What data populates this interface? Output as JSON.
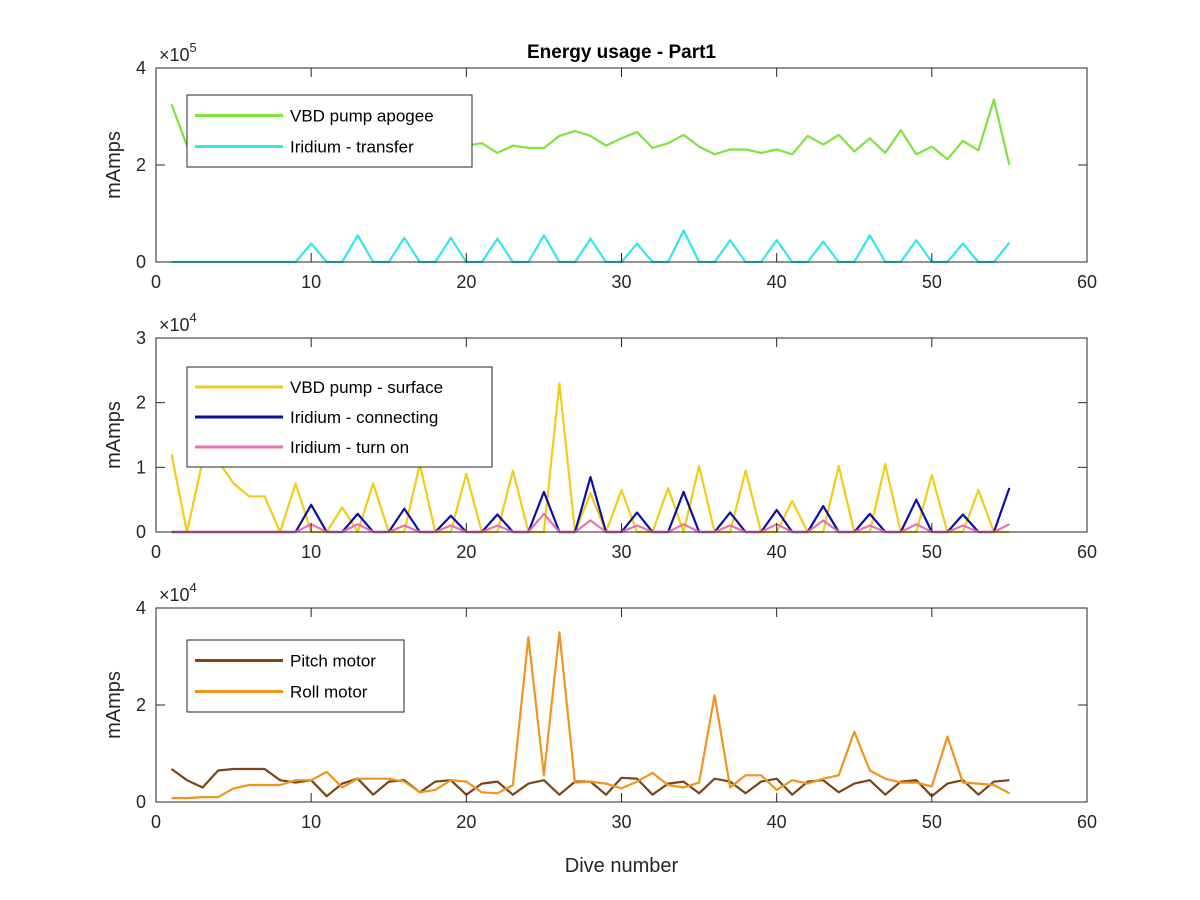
{
  "chart_data": [
    {
      "type": "line",
      "title": "Energy usage - Part1",
      "xlabel": "",
      "ylabel": "mAmps",
      "xlim": [
        0,
        60
      ],
      "ylim": [
        0,
        4
      ],
      "y_multiplier": "10",
      "y_exponent": "5",
      "x_ticks": [
        "0",
        "10",
        "20",
        "30",
        "40",
        "50",
        "60"
      ],
      "y_ticks": [
        "0",
        "2",
        "4"
      ],
      "legend_position": "top-left",
      "series": [
        {
          "name": "VBD pump apogee",
          "color": "#7ee33c",
          "x": [
            1,
            2,
            3,
            4,
            5,
            6,
            7,
            8,
            9,
            10,
            11,
            12,
            13,
            14,
            15,
            16,
            17,
            18,
            19,
            20,
            21,
            22,
            23,
            24,
            25,
            26,
            27,
            28,
            29,
            30,
            31,
            32,
            33,
            34,
            35,
            36,
            37,
            38,
            39,
            40,
            41,
            42,
            43,
            44,
            45,
            46,
            47,
            48,
            49,
            50,
            51,
            52,
            53,
            54,
            55
          ],
          "values": [
            3.25,
            2.4,
            2.5,
            2.45,
            2.5,
            2.4,
            2.45,
            2.5,
            2.42,
            2.48,
            2.4,
            2.45,
            2.5,
            2.35,
            2.48,
            2.4,
            2.5,
            2.42,
            2.45,
            2.4,
            2.45,
            2.25,
            2.4,
            2.35,
            2.35,
            2.6,
            2.7,
            2.6,
            2.4,
            2.55,
            2.68,
            2.35,
            2.45,
            2.62,
            2.38,
            2.22,
            2.32,
            2.32,
            2.25,
            2.32,
            2.22,
            2.6,
            2.42,
            2.62,
            2.28,
            2.55,
            2.25,
            2.72,
            2.22,
            2.38,
            2.12,
            2.5,
            2.3,
            3.35,
            2.0
          ]
        },
        {
          "name": "Iridium - transfer",
          "color": "#33e6ee",
          "x": [
            1,
            2,
            3,
            4,
            5,
            6,
            7,
            8,
            9,
            10,
            11,
            12,
            13,
            14,
            15,
            16,
            17,
            18,
            19,
            20,
            21,
            22,
            23,
            24,
            25,
            26,
            27,
            28,
            29,
            30,
            31,
            32,
            33,
            34,
            35,
            36,
            37,
            38,
            39,
            40,
            41,
            42,
            43,
            44,
            45,
            46,
            47,
            48,
            49,
            50,
            51,
            52,
            53,
            54,
            55
          ],
          "values": [
            0,
            0,
            0,
            0,
            0,
            0,
            0,
            0,
            0,
            0.38,
            0,
            0,
            0.55,
            0,
            0,
            0.5,
            0,
            0,
            0.5,
            0,
            0,
            0.48,
            0,
            0,
            0.55,
            0,
            0,
            0.48,
            0,
            0,
            0.38,
            0,
            0,
            0.65,
            0,
            0,
            0.45,
            0,
            0,
            0.45,
            0,
            0,
            0.42,
            0,
            0,
            0.55,
            0,
            0,
            0.45,
            0,
            0,
            0.38,
            0,
            0,
            0.4
          ]
        }
      ]
    },
    {
      "type": "line",
      "title": "",
      "xlabel": "",
      "ylabel": "mAmps",
      "xlim": [
        0,
        60
      ],
      "ylim": [
        0,
        3
      ],
      "y_multiplier": "10",
      "y_exponent": "4",
      "x_ticks": [
        "0",
        "10",
        "20",
        "30",
        "40",
        "50",
        "60"
      ],
      "y_ticks": [
        "0",
        "1",
        "2",
        "3"
      ],
      "legend_position": "top-left",
      "series": [
        {
          "name": "VBD pump - surface",
          "color": "#f2cd18",
          "x": [
            1,
            2,
            3,
            4,
            5,
            6,
            7,
            8,
            9,
            10,
            11,
            12,
            13,
            14,
            15,
            16,
            17,
            18,
            19,
            20,
            21,
            22,
            23,
            24,
            25,
            26,
            27,
            28,
            29,
            30,
            31,
            32,
            33,
            34,
            35,
            36,
            37,
            38,
            39,
            40,
            41,
            42,
            43,
            44,
            45,
            46,
            47,
            48,
            49,
            50,
            51,
            52,
            53,
            54,
            55
          ],
          "values": [
            1.2,
            0,
            1.1,
            1.1,
            0.75,
            0.55,
            0.55,
            0,
            0.75,
            0,
            0,
            0.38,
            0,
            0.75,
            0,
            0,
            1.05,
            0,
            0,
            0.9,
            0,
            0,
            0.95,
            0,
            0,
            2.3,
            0,
            0.6,
            0,
            0.65,
            0,
            0,
            0.68,
            0,
            1.02,
            0,
            0,
            0.95,
            0,
            0,
            0.48,
            0,
            0,
            1.02,
            0,
            0,
            1.05,
            0,
            0,
            0.88,
            0,
            0,
            0.65,
            0,
            0
          ]
        },
        {
          "name": "Iridium - connecting",
          "color": "#0d0ea8",
          "x": [
            1,
            2,
            3,
            4,
            5,
            6,
            7,
            8,
            9,
            10,
            11,
            12,
            13,
            14,
            15,
            16,
            17,
            18,
            19,
            20,
            21,
            22,
            23,
            24,
            25,
            26,
            27,
            28,
            29,
            30,
            31,
            32,
            33,
            34,
            35,
            36,
            37,
            38,
            39,
            40,
            41,
            42,
            43,
            44,
            45,
            46,
            47,
            48,
            49,
            50,
            51,
            52,
            53,
            54,
            55
          ],
          "values": [
            0,
            0,
            0,
            0,
            0,
            0,
            0,
            0,
            0,
            0.42,
            0,
            0,
            0.28,
            0,
            0,
            0.36,
            0,
            0,
            0.25,
            0,
            0,
            0.27,
            0,
            0,
            0.62,
            0,
            0,
            0.85,
            0,
            0,
            0.3,
            0,
            0,
            0.62,
            0,
            0,
            0.3,
            0,
            0,
            0.34,
            0,
            0,
            0.4,
            0,
            0,
            0.28,
            0,
            0,
            0.5,
            0,
            0,
            0.27,
            0,
            0,
            0.68
          ]
        },
        {
          "name": "Iridium - turn on",
          "color": "#ee6fb4",
          "x": [
            1,
            2,
            3,
            4,
            5,
            6,
            7,
            8,
            9,
            10,
            11,
            12,
            13,
            14,
            15,
            16,
            17,
            18,
            19,
            20,
            21,
            22,
            23,
            24,
            25,
            26,
            27,
            28,
            29,
            30,
            31,
            32,
            33,
            34,
            35,
            36,
            37,
            38,
            39,
            40,
            41,
            42,
            43,
            44,
            45,
            46,
            47,
            48,
            49,
            50,
            51,
            52,
            53,
            54,
            55
          ],
          "values": [
            0,
            0,
            0,
            0,
            0,
            0,
            0,
            0,
            0,
            0.12,
            0,
            0,
            0.12,
            0,
            0,
            0.1,
            0,
            0,
            0.1,
            0,
            0,
            0.1,
            0,
            0,
            0.28,
            0,
            0,
            0.18,
            0,
            0,
            0.1,
            0,
            0,
            0.12,
            0,
            0,
            0.1,
            0,
            0,
            0.12,
            0,
            0,
            0.18,
            0,
            0,
            0.1,
            0,
            0,
            0.12,
            0,
            0,
            0.1,
            0,
            0,
            0.12
          ]
        }
      ]
    },
    {
      "type": "line",
      "title": "",
      "xlabel": "Dive number",
      "ylabel": "mAmps",
      "xlim": [
        0,
        60
      ],
      "ylim": [
        0,
        4
      ],
      "y_multiplier": "10",
      "y_exponent": "4",
      "x_ticks": [
        "0",
        "10",
        "20",
        "30",
        "40",
        "50",
        "60"
      ],
      "y_ticks": [
        "0",
        "2",
        "4"
      ],
      "legend_position": "top-left",
      "series": [
        {
          "name": "Pitch motor",
          "color": "#7a4616",
          "x": [
            1,
            2,
            3,
            4,
            5,
            6,
            7,
            8,
            9,
            10,
            11,
            12,
            13,
            14,
            15,
            16,
            17,
            18,
            19,
            20,
            21,
            22,
            23,
            24,
            25,
            26,
            27,
            28,
            29,
            30,
            31,
            32,
            33,
            34,
            35,
            36,
            37,
            38,
            39,
            40,
            41,
            42,
            43,
            44,
            45,
            46,
            47,
            48,
            49,
            50,
            51,
            52,
            53,
            54,
            55
          ],
          "values": [
            0.68,
            0.45,
            0.3,
            0.65,
            0.68,
            0.68,
            0.68,
            0.45,
            0.4,
            0.45,
            0.12,
            0.38,
            0.48,
            0.15,
            0.42,
            0.45,
            0.2,
            0.42,
            0.45,
            0.15,
            0.38,
            0.42,
            0.15,
            0.38,
            0.45,
            0.15,
            0.42,
            0.42,
            0.15,
            0.5,
            0.48,
            0.15,
            0.38,
            0.42,
            0.18,
            0.48,
            0.42,
            0.18,
            0.42,
            0.48,
            0.15,
            0.42,
            0.45,
            0.2,
            0.38,
            0.45,
            0.15,
            0.42,
            0.45,
            0.12,
            0.38,
            0.45,
            0.15,
            0.42,
            0.45
          ]
        },
        {
          "name": "Roll motor",
          "color": "#f0941e",
          "x": [
            1,
            2,
            3,
            4,
            5,
            6,
            7,
            8,
            9,
            10,
            11,
            12,
            13,
            14,
            15,
            16,
            17,
            18,
            19,
            20,
            21,
            22,
            23,
            24,
            25,
            26,
            27,
            28,
            29,
            30,
            31,
            32,
            33,
            34,
            35,
            36,
            37,
            38,
            39,
            40,
            41,
            42,
            43,
            44,
            45,
            46,
            47,
            48,
            49,
            50,
            51,
            52,
            53,
            54,
            55
          ],
          "values": [
            0.08,
            0.08,
            0.1,
            0.1,
            0.28,
            0.35,
            0.35,
            0.35,
            0.45,
            0.45,
            0.62,
            0.3,
            0.48,
            0.48,
            0.48,
            0.42,
            0.2,
            0.25,
            0.45,
            0.42,
            0.2,
            0.18,
            0.35,
            3.4,
            0.55,
            3.5,
            0.4,
            0.42,
            0.38,
            0.28,
            0.42,
            0.6,
            0.35,
            0.3,
            0.4,
            2.2,
            0.3,
            0.55,
            0.55,
            0.25,
            0.45,
            0.38,
            0.48,
            0.55,
            1.45,
            0.65,
            0.48,
            0.4,
            0.4,
            0.32,
            1.35,
            0.4,
            0.38,
            0.35,
            0.18
          ]
        }
      ]
    }
  ]
}
